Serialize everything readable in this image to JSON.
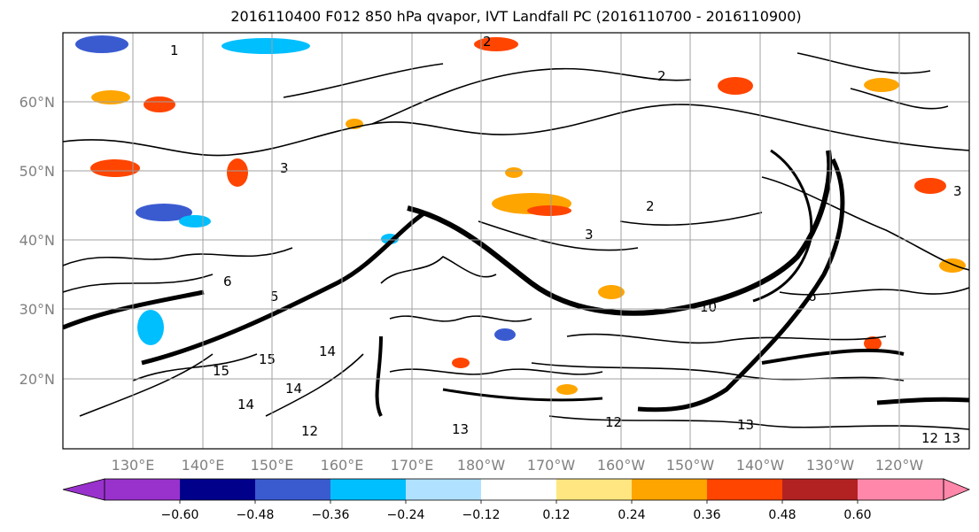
{
  "figure": {
    "title": "2016110400 F012 850 hPa qvapor, IVT Landfall PC (2016110700 - 2016110900)"
  },
  "axes": {
    "lat_labels": [
      "60°N",
      "50°N",
      "40°N",
      "30°N",
      "20°N"
    ],
    "lon_labels": [
      "130°E",
      "140°E",
      "150°E",
      "160°E",
      "170°E",
      "180°W",
      "170°W",
      "160°W",
      "150°W",
      "140°W",
      "130°W",
      "120°W"
    ],
    "gridlines": true
  },
  "colorbar": {
    "ticks": [
      "−0.60",
      "−0.48",
      "−0.36",
      "−0.24",
      "−0.12",
      "0.12",
      "0.24",
      "0.36",
      "0.48",
      "0.60"
    ],
    "colors": [
      "#9932cc",
      "#00008b",
      "#3a5bd0",
      "#00bfff",
      "#b0e2ff",
      "#ffffff",
      "#ffe680",
      "#ffa500",
      "#ff4500",
      "#b22222",
      "#ff88aa"
    ],
    "extend": "both"
  },
  "contour_labels": [
    "1",
    "2",
    "2",
    "2",
    "3",
    "3",
    "3",
    "5",
    "6",
    "6",
    "10",
    "12",
    "12",
    "12",
    "13",
    "13",
    "13",
    "14",
    "14",
    "14",
    "15",
    "15"
  ]
}
